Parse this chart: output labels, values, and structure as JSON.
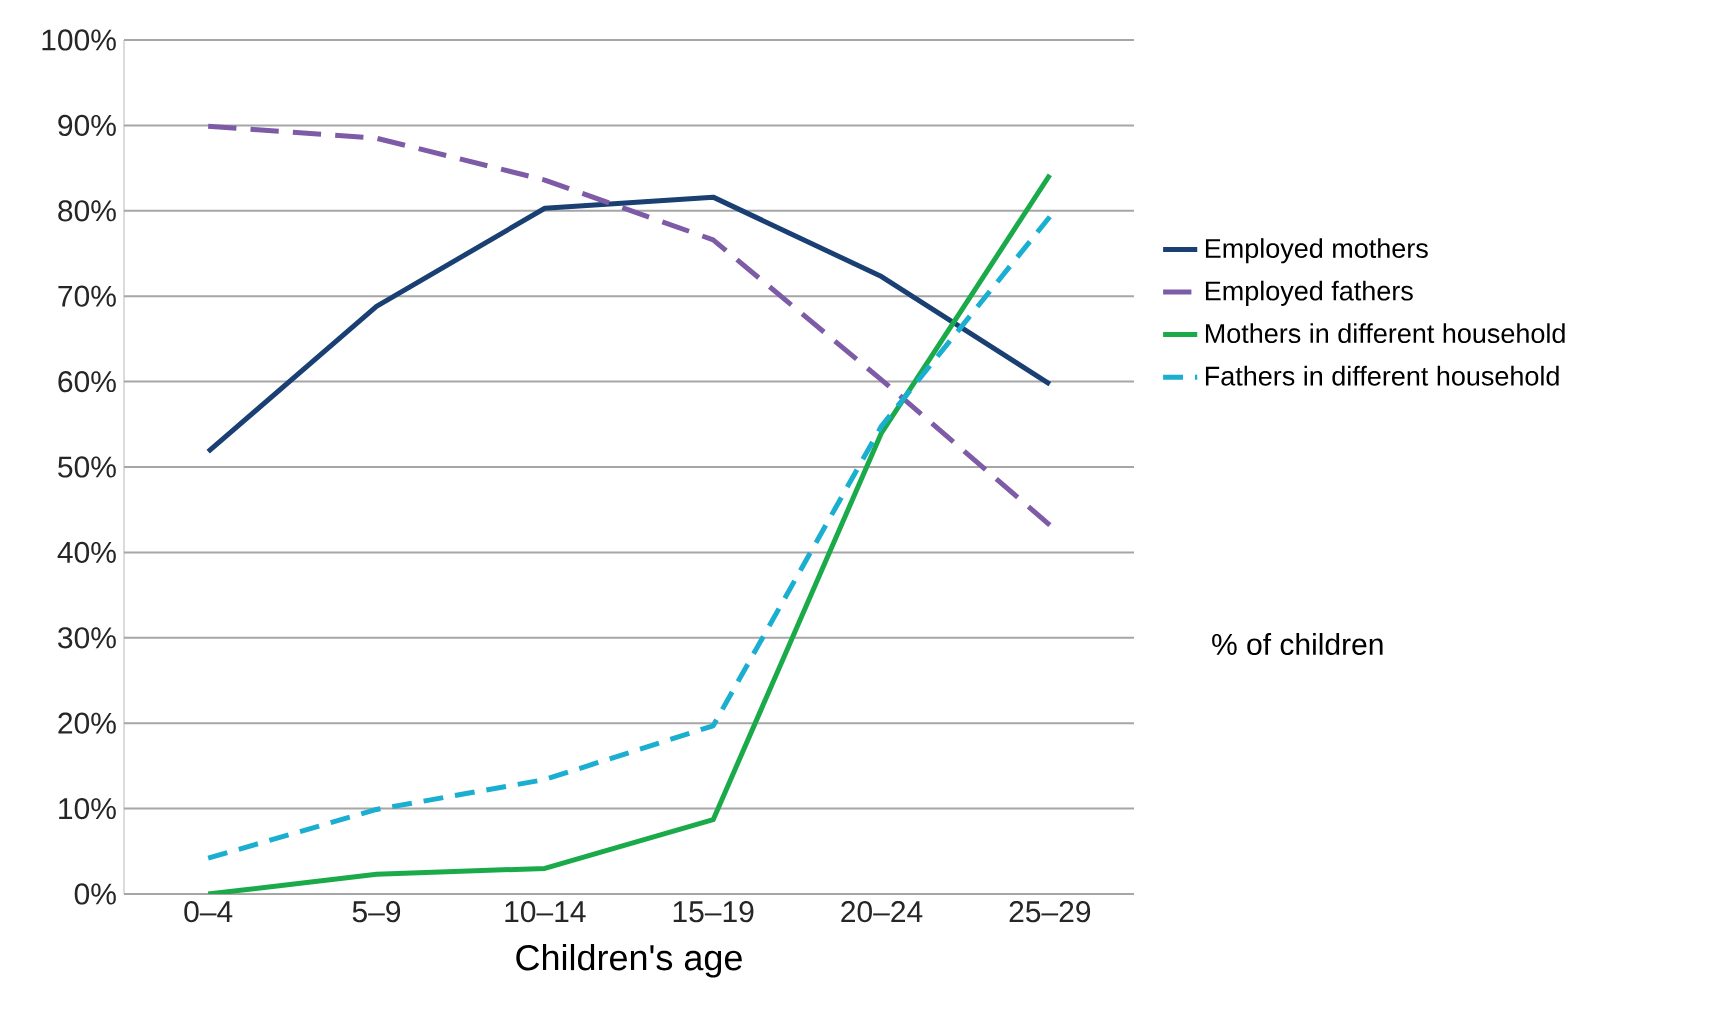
{
  "chart_data": {
    "type": "line",
    "xlabel": "Children's age",
    "ylabel": "% of children",
    "categories": [
      "0–4",
      "5–9",
      "10–14",
      "15–19",
      "20–24",
      "25–29"
    ],
    "series": [
      {
        "name": "Employed mothers",
        "color": "#1a3f73",
        "line_style": "solid",
        "values": [
          51.8,
          68.8,
          80.3,
          81.6,
          72.3,
          59.7
        ]
      },
      {
        "name": "Employed fathers",
        "color": "#7e5ba6",
        "line_style": "dashed",
        "values": [
          89.9,
          88.5,
          83.6,
          76.6,
          60.2,
          43.2
        ]
      },
      {
        "name": "Mothers in different household",
        "color": "#1aaa4a",
        "line_style": "solid",
        "values": [
          0,
          2.3,
          3.0,
          8.7,
          54,
          84.2
        ]
      },
      {
        "name": "Fathers in different household",
        "color": "#1aaed0",
        "line_style": "dashed",
        "values": [
          4.2,
          9.9,
          13.4,
          19.7,
          54.8,
          79.3
        ]
      }
    ],
    "ylim": [
      0,
      100
    ],
    "yticks": [
      {
        "value": 0,
        "label": "0%"
      },
      {
        "value": 10,
        "label": "10%"
      },
      {
        "value": 20,
        "label": "20%"
      },
      {
        "value": 30,
        "label": "30%"
      },
      {
        "value": 40,
        "label": "40%"
      },
      {
        "value": 50,
        "label": "50%"
      },
      {
        "value": 60,
        "label": "60%"
      },
      {
        "value": 70,
        "label": "70%"
      },
      {
        "value": 80,
        "label": "80%"
      },
      {
        "value": 90,
        "label": "90%"
      },
      {
        "value": 100,
        "label": "100%"
      }
    ],
    "grid": "y",
    "legend": "right",
    "marker": "none"
  }
}
